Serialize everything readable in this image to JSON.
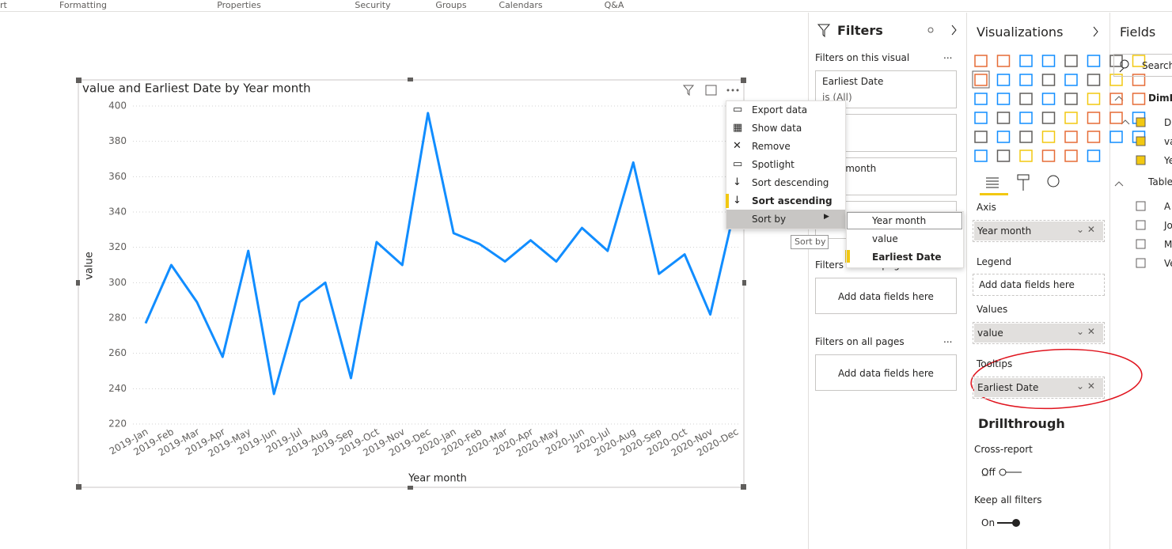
{
  "ribbon": [
    "rt",
    "Formatting",
    "Properties",
    "Security",
    "Groups",
    "Calendars",
    "Q&A"
  ],
  "chart_data": {
    "type": "line",
    "title": "value and Earliest Date by Year month",
    "x_label": "Year month",
    "y_label": "value",
    "categories": [
      "2019-Jan",
      "2019-Feb",
      "2019-Mar",
      "2019-Apr",
      "2019-May",
      "2019-Jun",
      "2019-Jul",
      "2019-Aug",
      "2019-Sep",
      "2019-Oct",
      "2019-Nov",
      "2019-Dec",
      "2020-Jan",
      "2020-Feb",
      "2020-Mar",
      "2020-Apr",
      "2020-May",
      "2020-Jun",
      "2020-Jul",
      "2020-Aug",
      "2020-Sep",
      "2020-Oct",
      "2020-Nov",
      "2020-Dec"
    ],
    "series": [
      {
        "name": "value",
        "color": "#118dff",
        "values": [
          277,
          310,
          289,
          258,
          318,
          237,
          289,
          300,
          246,
          323,
          310,
          396,
          328,
          322,
          312,
          324,
          312,
          331,
          318,
          368,
          305,
          316,
          282,
          345
        ]
      }
    ],
    "ylim": [
      220,
      400
    ],
    "yticks": [
      220,
      240,
      260,
      280,
      300,
      320,
      340,
      360,
      380,
      400
    ],
    "grid": true
  },
  "context_menu": {
    "items": [
      "Export data",
      "Show data",
      "Remove",
      "Spotlight",
      "Sort descending",
      "Sort ascending",
      "Sort by"
    ],
    "submenu": [
      "Year month",
      "value",
      "Earliest Date"
    ],
    "tooltip": "Sort by"
  },
  "filters": {
    "title": "Filters",
    "on_visual": "Filters on this visual",
    "more": "...",
    "card_field": "Earliest Date",
    "card_state": "is (All)",
    "card3_field": "Year month",
    "on_page": "Filters on this page",
    "add": "Add data fields here",
    "on_all": "Filters on all pages"
  },
  "visualizations": {
    "title": "Visualizations",
    "axis": "Axis",
    "axis_field": "Year month",
    "legend": "Legend",
    "add": "Add data fields here",
    "values": "Values",
    "values_field": "value",
    "tooltips": "Tooltips",
    "tooltips_field": "Earliest Date",
    "drillthrough": "Drillthrough",
    "cross_report": "Cross-report",
    "off": "Off",
    "keep_filters": "Keep all filters",
    "on": "On"
  },
  "fields": {
    "title": "Fields",
    "search": "Search",
    "table1": "DimD",
    "items1": [
      "D",
      "va",
      "Ye"
    ],
    "table2": "Table",
    "items2": [
      "A",
      "Jo",
      "M",
      "Ve"
    ]
  }
}
